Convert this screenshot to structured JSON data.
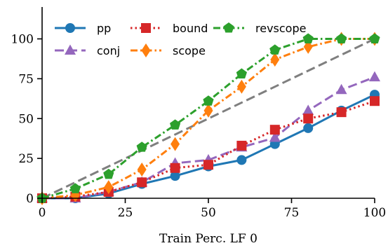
{
  "chart_data": {
    "type": "line",
    "xlabel": "Train Perc. LF 0",
    "ylabel": "",
    "xlim": [
      0,
      100
    ],
    "ylim": [
      0,
      120
    ],
    "xticks": [
      0,
      25,
      50,
      75,
      100
    ],
    "yticks": [
      0,
      25,
      50,
      75,
      100
    ],
    "grid": false,
    "legend_position": "top-left",
    "x": [
      0,
      10,
      20,
      30,
      40,
      50,
      60,
      70,
      80,
      90,
      100
    ],
    "series": [
      {
        "name": "pp",
        "color": "#1f77b4",
        "marker": "circle",
        "linestyle": "solid",
        "values": [
          0,
          0,
          3,
          9,
          14,
          20,
          24,
          34,
          44,
          55,
          65
        ]
      },
      {
        "name": "conj",
        "color": "#9467bd",
        "marker": "triangle",
        "linestyle": "dashed",
        "values": [
          0,
          0,
          4,
          10,
          22,
          24,
          32,
          38,
          55,
          68,
          76
        ]
      },
      {
        "name": "bound",
        "color": "#d62728",
        "marker": "square",
        "linestyle": "dotted",
        "values": [
          0,
          1,
          4,
          10,
          19,
          21,
          33,
          43,
          50,
          54,
          61
        ]
      },
      {
        "name": "scope",
        "color": "#ff7f0e",
        "marker": "diamond",
        "linestyle": "dashdot",
        "values": [
          0,
          2,
          7,
          18,
          34,
          55,
          70,
          87,
          95,
          100,
          100
        ]
      },
      {
        "name": "revscope",
        "color": "#2ca02c",
        "marker": "pentagon",
        "linestyle": "dashdot",
        "values": [
          0,
          6,
          15,
          32,
          46,
          61,
          78,
          93,
          100,
          100,
          100
        ]
      }
    ],
    "reference_line": {
      "color": "#7f7f7f",
      "linestyle": "dashed",
      "x": [
        0,
        100
      ],
      "y": [
        0,
        100
      ]
    }
  }
}
